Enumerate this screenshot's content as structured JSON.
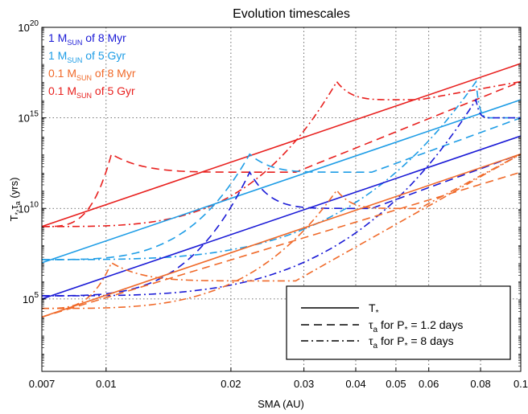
{
  "chart_data": {
    "type": "line",
    "title": "Evolution timescales",
    "xlabel": "SMA (AU)",
    "ylabel_main": "T",
    "ylabel_sub1": "*",
    "ylabel_mid": ",τ",
    "ylabel_sub2": "a",
    "ylabel_tail": " (yrs)",
    "x_scale": "log",
    "y_scale": "log",
    "xlim": [
      0.007,
      0.1
    ],
    "ylim": [
      10.0,
      1e+20
    ],
    "x_ticks": [
      {
        "value": 0.007,
        "label": "0.007"
      },
      {
        "value": 0.01,
        "label": "0.01"
      },
      {
        "value": 0.02,
        "label": "0.02"
      },
      {
        "value": 0.03,
        "label": "0.03"
      },
      {
        "value": 0.04,
        "label": "0.04"
      },
      {
        "value": 0.05,
        "label": "0.05"
      },
      {
        "value": 0.06,
        "label": "0.06"
      },
      {
        "value": 0.08,
        "label": "0.08"
      },
      {
        "value": 0.1,
        "label": "0.1"
      }
    ],
    "y_ticks": [
      {
        "value": 100000.0,
        "base": "10",
        "exp": "5"
      },
      {
        "value": 10000000000.0,
        "base": "10",
        "exp": "10"
      },
      {
        "value": 1000000000000000.0,
        "base": "10",
        "exp": "15"
      },
      {
        "value": 1e+20,
        "base": "10",
        "exp": "20"
      }
    ],
    "grid": true,
    "mass_legend": [
      {
        "pre": "1 M",
        "sub": "SUN",
        "post": " of 8 Myr",
        "color": "#1a1ad6"
      },
      {
        "pre": "1 M",
        "sub": "SUN",
        "post": " of 5 Gyr",
        "color": "#1e9de6"
      },
      {
        "pre": "0.1 M",
        "sub": "SUN",
        "post": " of 8 Myr",
        "color": "#f06a2a"
      },
      {
        "pre": "0.1 M",
        "sub": "SUN",
        "post": " of 5 Gyr",
        "color": "#e8201e"
      }
    ],
    "style_legend": [
      {
        "style": "solid",
        "main": "T",
        "sub": "*",
        "tail": ""
      },
      {
        "style": "dashed",
        "main": "τ",
        "sub": "a",
        "tail": " for P",
        "sub2": "*",
        "tail2": " = 1.2 days"
      },
      {
        "style": "dashdot",
        "main": "τ",
        "sub": "a",
        "tail": " for P",
        "sub2": "*",
        "tail2": " = 8 days"
      }
    ],
    "series": [
      {
        "color": "#e8201e",
        "style": "solid",
        "kind": "line",
        "x": [
          0.007,
          0.1
        ],
        "y": [
          1000000000.0,
          1e+18
        ]
      },
      {
        "color": "#e8201e",
        "style": "dashed",
        "kind": "peak",
        "x_peak": 0.0103,
        "y_peak": 10000000000000.0,
        "y_left": 1000000000.0,
        "y_min": 1000000000000.0,
        "x_end": 0.1,
        "y_end": 1e+17
      },
      {
        "color": "#e8201e",
        "style": "dashdot",
        "kind": "peak",
        "x_peak": 0.036,
        "y_peak": 1e+17,
        "y_left": 1000000000.0,
        "y_min": 1e+16,
        "x_end": 0.1,
        "y_end": 1e+17
      },
      {
        "color": "#1e9de6",
        "style": "solid",
        "kind": "line",
        "x": [
          0.007,
          0.1
        ],
        "y": [
          10000000.0,
          1e+16
        ]
      },
      {
        "color": "#1e9de6",
        "style": "dashed",
        "kind": "peak",
        "x_peak": 0.0222,
        "y_peak": 10000000000000.0,
        "y_left": 15000000.0,
        "y_min": 1000000000000.0,
        "x_end": 0.1,
        "y_end": 1000000000000000.0
      },
      {
        "color": "#1e9de6",
        "style": "dashdot",
        "kind": "peak",
        "x_peak": 0.078,
        "y_peak": 1e+17,
        "y_left": 15000000.0,
        "y_min": 1000000000000000.0,
        "x_end": 0.1,
        "y_end": 1000000000000000.0
      },
      {
        "color": "#1a1ad6",
        "style": "solid",
        "kind": "line",
        "x": [
          0.007,
          0.1
        ],
        "y": [
          100000.0,
          100000000000000.0
        ]
      },
      {
        "color": "#1a1ad6",
        "style": "dashed",
        "kind": "peak",
        "x_peak": 0.0222,
        "y_peak": 1000000000000.0,
        "y_left": 150000.0,
        "y_min": 10000000000.0,
        "x_end": 0.1,
        "y_end": 10000000000000.0
      },
      {
        "color": "#1a1ad6",
        "style": "dashdot",
        "kind": "peak",
        "x_peak": 0.078,
        "y_peak": 1e+16,
        "y_left": 150000.0,
        "y_min": 1000000000000000.0,
        "x_end": 0.1,
        "y_end": 1000000000000000.0
      },
      {
        "color": "#f06a2a",
        "style": "solid",
        "kind": "line",
        "x": [
          0.007,
          0.1
        ],
        "y": [
          10000.0,
          10000000000000.0
        ]
      },
      {
        "color": "#f06a2a",
        "style": "dashed",
        "kind": "line",
        "x": [
          0.007,
          0.1
        ],
        "y": [
          10000.0,
          1000000000000.0
        ]
      },
      {
        "color": "#f06a2a",
        "style": "dashdot",
        "kind": "peak",
        "x_peak": 0.0103,
        "y_peak": 10000000.0,
        "y_left": 30000.0,
        "y_min": 1000000.0,
        "x_end": 0.1,
        "y_end": 10000000000000.0
      },
      {
        "color": "#f06a2a",
        "style": "dashdot",
        "kind": "peak",
        "x_peak": 0.036,
        "y_peak": 100000000000.0,
        "y_left": 30000.0,
        "y_min": 10000000000.0,
        "x_end": 0.1,
        "y_end": 10000000000000.0
      }
    ]
  }
}
